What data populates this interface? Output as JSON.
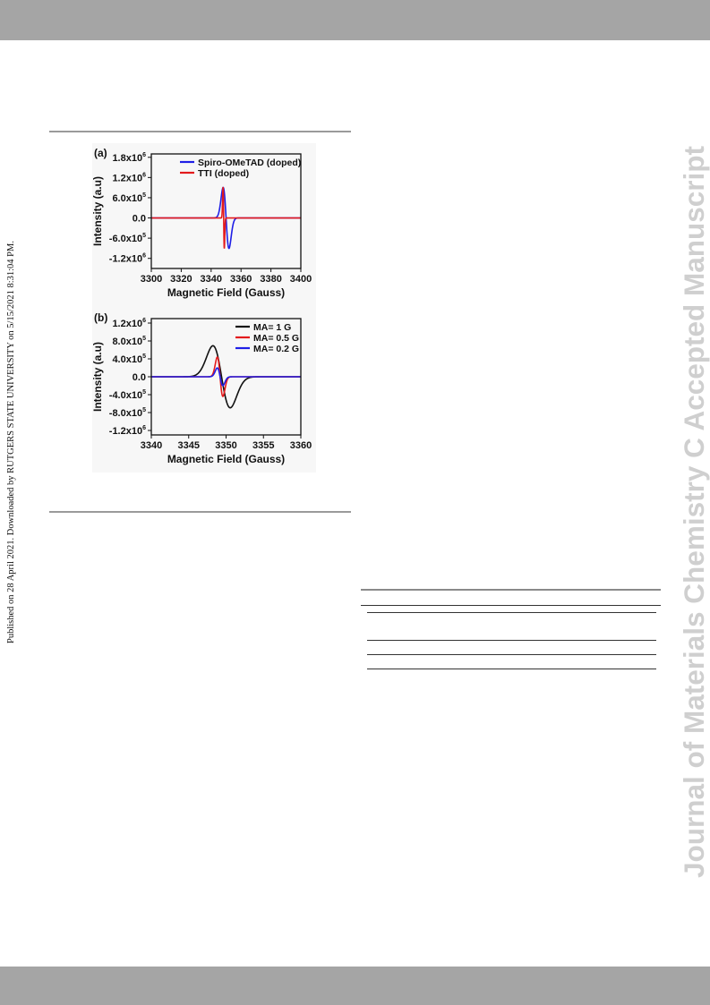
{
  "side_note": "Published on 28 April 2021. Downloaded by RUTGERS STATE UNIVERSITY on 5/15/2021 8:31:04 PM.",
  "watermark": "Journal of Materials Chemistry C Accepted Manuscript",
  "chart_data": [
    {
      "panel": "(a)",
      "type": "line",
      "xlabel": "Magnetic Field (Gauss)",
      "ylabel": "Intensity (a.u)",
      "xlim": [
        3300,
        3400
      ],
      "ylim": [
        -1.5,
        1.9
      ],
      "y_unit_exponent": 6,
      "x_ticks": [
        3300,
        3320,
        3340,
        3360,
        3380,
        3400
      ],
      "y_ticks": [
        -1.2,
        -0.6,
        0.0,
        0.6,
        1.2,
        1.8
      ],
      "y_tick_labels": [
        {
          "mant": "-1.2x10",
          "exp": "6"
        },
        {
          "mant": "-6.0x10",
          "exp": "5"
        },
        {
          "mant": "0.0",
          "exp": ""
        },
        {
          "mant": "6.0x10",
          "exp": "5"
        },
        {
          "mant": "1.2x10",
          "exp": "6"
        },
        {
          "mant": "1.8x10",
          "exp": "6"
        }
      ],
      "legend_position": "top-right",
      "series": [
        {
          "name": "Spiro-OMeTAD (doped)",
          "color": "#1f1fe6",
          "center": 3350,
          "amplitude": 1.28,
          "half_width": 2.6
        },
        {
          "name": "TTI (doped)",
          "color": "#e31a1c",
          "center": 3348.4,
          "amplitude": 1.3,
          "half_width": 0.55
        }
      ]
    },
    {
      "panel": "(b)",
      "type": "line",
      "xlabel": "Magnetic Field (Gauss)",
      "ylabel": "Intensity (a.u)",
      "xlim": [
        3340,
        3360
      ],
      "ylim": [
        -1.3,
        1.3
      ],
      "y_unit_exponent": 6,
      "x_ticks": [
        3340,
        3345,
        3350,
        3355,
        3360
      ],
      "y_ticks": [
        -1.2,
        -0.8,
        -0.4,
        0.0,
        0.4,
        0.8,
        1.2
      ],
      "y_tick_labels": [
        {
          "mant": "-1.2x10",
          "exp": "6"
        },
        {
          "mant": "-8.0x10",
          "exp": "5"
        },
        {
          "mant": "-4.0x10",
          "exp": "5"
        },
        {
          "mant": "0.0",
          "exp": ""
        },
        {
          "mant": "4.0x10",
          "exp": "5"
        },
        {
          "mant": "8.0x10",
          "exp": "5"
        },
        {
          "mant": "1.2x10",
          "exp": "6"
        }
      ],
      "legend_position": "top-right",
      "series": [
        {
          "name": "MA= 1 G",
          "color": "#111111",
          "center": 3349.4,
          "amplitude": 0.98,
          "half_width": 1.55
        },
        {
          "name": "MA= 0.5 G",
          "color": "#e31a1c",
          "center": 3349.2,
          "amplitude": 0.62,
          "half_width": 0.5
        },
        {
          "name": "MA= 0.2 G",
          "color": "#1f1fe6",
          "center": 3349.2,
          "amplitude": 0.28,
          "half_width": 0.5
        }
      ]
    }
  ]
}
